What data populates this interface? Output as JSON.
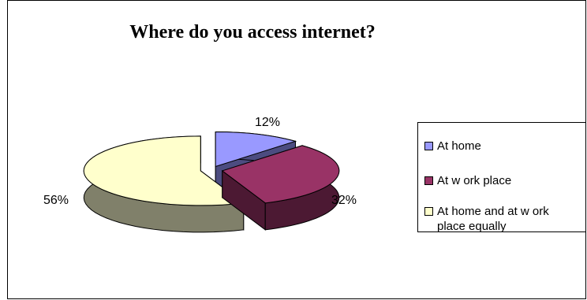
{
  "chart_data": {
    "type": "pie",
    "title": "Where do you access internet?",
    "categories": [
      "At home",
      "At w ork place",
      "At home and at w ork place equally"
    ],
    "values": [
      12,
      32,
      56
    ],
    "data_labels": [
      "12%",
      "32%",
      "56%"
    ],
    "colors": [
      "#9999FF",
      "#993366",
      "#FFFFCC"
    ],
    "side_colors": [
      "#4C4C80",
      "#4C1933",
      "#80806A"
    ],
    "legend_placement": "right",
    "three_d": true
  }
}
